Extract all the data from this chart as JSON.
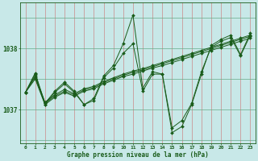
{
  "title": "Graphe pression niveau de la mer (hPa)",
  "bg_color": "#c8e8e8",
  "line_color": "#1a5c1a",
  "xlim": [
    -0.5,
    23.5
  ],
  "ylim": [
    1036.45,
    1038.75
  ],
  "yticks": [
    1037,
    1038
  ],
  "xticks": [
    0,
    1,
    2,
    3,
    4,
    5,
    6,
    7,
    8,
    9,
    10,
    11,
    12,
    13,
    14,
    15,
    16,
    17,
    18,
    19,
    20,
    21,
    22,
    23
  ],
  "series": [
    [
      1037.28,
      1037.5,
      1037.08,
      1037.2,
      1037.28,
      1037.22,
      1037.3,
      1037.34,
      1037.42,
      1037.48,
      1037.54,
      1037.58,
      1037.63,
      1037.68,
      1037.72,
      1037.77,
      1037.82,
      1037.87,
      1037.92,
      1037.97,
      1038.02,
      1038.07,
      1038.12,
      1038.17
    ],
    [
      1037.28,
      1037.53,
      1037.1,
      1037.22,
      1037.3,
      1037.24,
      1037.32,
      1037.36,
      1037.44,
      1037.5,
      1037.56,
      1037.61,
      1037.65,
      1037.7,
      1037.75,
      1037.8,
      1037.85,
      1037.9,
      1037.95,
      1038.0,
      1038.05,
      1038.1,
      1038.15,
      1038.2
    ],
    [
      1037.28,
      1037.55,
      1037.12,
      1037.24,
      1037.33,
      1037.26,
      1037.34,
      1037.38,
      1037.46,
      1037.52,
      1037.58,
      1037.63,
      1037.67,
      1037.72,
      1037.77,
      1037.82,
      1037.87,
      1037.92,
      1037.97,
      1038.02,
      1038.07,
      1038.12,
      1038.17,
      1038.22
    ],
    [
      1037.28,
      1037.58,
      1037.08,
      1037.28,
      1037.42,
      1037.28,
      1037.08,
      1037.15,
      1037.52,
      1037.68,
      1037.92,
      1038.08,
      1037.3,
      1037.58,
      1037.58,
      1036.7,
      1036.82,
      1037.1,
      1037.62,
      1038.02,
      1038.12,
      1038.18,
      1037.88,
      1038.22
    ],
    [
      1037.28,
      1037.6,
      1037.1,
      1037.3,
      1037.45,
      1037.3,
      1037.08,
      1037.18,
      1037.55,
      1037.72,
      1038.08,
      1038.55,
      1037.35,
      1037.62,
      1037.58,
      1036.62,
      1036.72,
      1037.08,
      1037.58,
      1038.05,
      1038.15,
      1038.22,
      1037.9,
      1038.25
    ]
  ]
}
